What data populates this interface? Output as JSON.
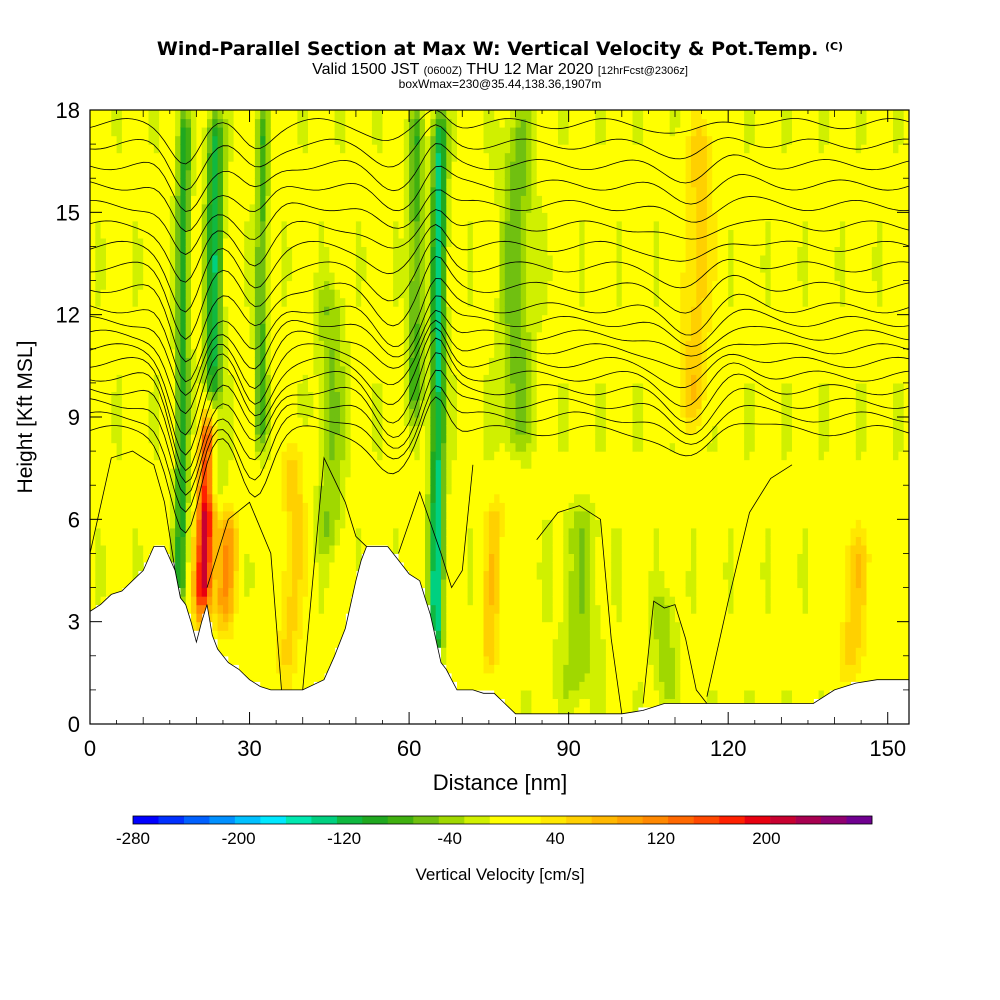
{
  "title": {
    "main": "Wind-Parallel Section at Max W: Vertical Velocity & Pot.Temp.",
    "copyright_mark": "(C)",
    "valid_prefix": "Valid 1500 JST",
    "utc": "(0600Z)",
    "date": "THU 12 Mar 2020",
    "forecast": "[12hrFcst@2306z]",
    "box_info": "boxWmax=230@35.44,138.36,1907m"
  },
  "chart_data": {
    "type": "heatmap",
    "xlabel": "Distance [nm]",
    "ylabel": "Height [Kft MSL]",
    "xlim": [
      0,
      154
    ],
    "ylim": [
      0,
      18
    ],
    "x_ticks": [
      0,
      30,
      60,
      90,
      120,
      150
    ],
    "y_ticks": [
      0,
      3,
      6,
      9,
      12,
      15,
      18
    ],
    "colorbar": {
      "label": "Vertical Velocity [cm/s]",
      "range": [
        -280,
        280
      ],
      "step": 20,
      "tick_labels": [
        -280,
        -200,
        -120,
        -40,
        40,
        120,
        200
      ],
      "colors": [
        "#0000ff",
        "#0030ff",
        "#0060ff",
        "#0090ff",
        "#00c0ff",
        "#00e8ff",
        "#00e8b0",
        "#00d080",
        "#10b840",
        "#20a820",
        "#40b010",
        "#70c010",
        "#a0d800",
        "#d0f000",
        "#ffff00",
        "#ffff00",
        "#ffe800",
        "#ffd000",
        "#ffb800",
        "#ffa000",
        "#ff8800",
        "#ff6800",
        "#ff4800",
        "#ff2000",
        "#e80010",
        "#c80030",
        "#a80050",
        "#900070",
        "#700090"
      ]
    },
    "terrain_profile": {
      "x": [
        0,
        2,
        4,
        6,
        8,
        10,
        12,
        14,
        16,
        17,
        18,
        19,
        20,
        21,
        22,
        23,
        24,
        26,
        28,
        30,
        32,
        34,
        36,
        40,
        44,
        46,
        48,
        50,
        51,
        52,
        54,
        56,
        58,
        60,
        62,
        63,
        64,
        65,
        66,
        67,
        68,
        69,
        70,
        72,
        74,
        76,
        78,
        80,
        84,
        88,
        92,
        96,
        100,
        104,
        108,
        110,
        112,
        116,
        120,
        124,
        128,
        132,
        136,
        140,
        144,
        148,
        150,
        154
      ],
      "h": [
        3.3,
        3.5,
        3.8,
        3.9,
        4.2,
        4.5,
        5.2,
        5.2,
        4.5,
        3.7,
        3.5,
        3.0,
        2.4,
        3.0,
        3.5,
        2.6,
        2.2,
        1.8,
        1.6,
        1.3,
        1.1,
        1.0,
        1.0,
        1.0,
        1.3,
        2.0,
        2.8,
        4.2,
        4.8,
        5.2,
        5.2,
        5.2,
        4.8,
        4.4,
        4.2,
        3.7,
        3.2,
        2.5,
        1.8,
        1.6,
        1.3,
        1.0,
        1.0,
        1.0,
        0.9,
        0.9,
        0.6,
        0.3,
        0.3,
        0.3,
        0.3,
        0.3,
        0.3,
        0.4,
        0.6,
        0.6,
        0.6,
        0.6,
        0.6,
        0.6,
        0.6,
        0.6,
        0.6,
        1.0,
        1.2,
        1.3,
        1.3,
        1.3
      ]
    },
    "updraft_cores": [
      {
        "x": 21,
        "y_bottom": 3.0,
        "y_top": 9.5,
        "w": 230,
        "halfwidth": 1.6
      },
      {
        "x": 25,
        "y_bottom": 2.5,
        "y_top": 6.5,
        "w": 100,
        "halfwidth": 2.2
      },
      {
        "x": 37,
        "y_bottom": 1.0,
        "y_top": 8.5,
        "w": 60,
        "halfwidth": 2.5
      },
      {
        "x": 75,
        "y_bottom": 1.0,
        "y_top": 7.0,
        "w": 60,
        "halfwidth": 2.0
      },
      {
        "x": 113,
        "y_bottom": 8.5,
        "y_top": 18.0,
        "w": 60,
        "halfwidth": 3.0
      },
      {
        "x": 143,
        "y_bottom": 1.0,
        "y_top": 6.0,
        "w": 60,
        "halfwidth": 3.0
      }
    ],
    "downdraft_cores": [
      {
        "x": 17,
        "y_bottom": 3.5,
        "y_top": 18.0,
        "w": -100,
        "halfwidth": 1.3
      },
      {
        "x": 23,
        "y_bottom": 6.5,
        "y_top": 18.0,
        "w": -120,
        "halfwidth": 1.6
      },
      {
        "x": 32,
        "y_bottom": 8.0,
        "y_top": 18.0,
        "w": -80,
        "halfwidth": 1.2
      },
      {
        "x": 45,
        "y_bottom": 5.0,
        "y_top": 13.0,
        "w": -50,
        "halfwidth": 2.5
      },
      {
        "x": 65,
        "y_bottom": 2.0,
        "y_top": 18.0,
        "w": -140,
        "halfwidth": 1.4
      },
      {
        "x": 61,
        "y_bottom": 9.0,
        "y_top": 18.0,
        "w": -80,
        "halfwidth": 1.4
      },
      {
        "x": 80,
        "y_bottom": 8.0,
        "y_top": 18.0,
        "w": -60,
        "halfwidth": 3.0
      },
      {
        "x": 92,
        "y_bottom": 0.5,
        "y_top": 6.5,
        "w": -40,
        "halfwidth": 4.0
      },
      {
        "x": 108,
        "y_bottom": 0.5,
        "y_top": 4.0,
        "w": -40,
        "halfwidth": 2.5
      }
    ],
    "theta_contours": {
      "base_levels": [
        8.6,
        9.0,
        9.4,
        9.8,
        10.2,
        10.6,
        11.0,
        11.4,
        11.8,
        12.2,
        12.8,
        13.4,
        14.0,
        14.6,
        15.2,
        15.8,
        16.4,
        17.0,
        17.6
      ],
      "perturbations": [
        {
          "x": 18,
          "amp": 3.0,
          "width": 4
        },
        {
          "x": 31,
          "amp": 1.8,
          "width": 4
        },
        {
          "x": 57,
          "amp": 1.4,
          "width": 5
        },
        {
          "x": 65,
          "amp": -1.2,
          "width": 3
        },
        {
          "x": 113,
          "amp": 1.0,
          "width": 6
        },
        {
          "x": 120,
          "amp": -0.5,
          "width": 6
        }
      ],
      "lower_contours": [
        {
          "x": [
            0,
            4,
            8,
            12,
            14,
            16,
            17
          ],
          "y": [
            5.0,
            7.8,
            8.0,
            7.6,
            6.5,
            4.5,
            3.7
          ]
        },
        {
          "x": [
            22,
            26,
            30,
            34,
            36
          ],
          "y": [
            4.0,
            6.0,
            6.5,
            5.0,
            1.0
          ]
        },
        {
          "x": [
            40,
            44,
            48,
            50,
            52
          ],
          "y": [
            1.0,
            7.8,
            6.5,
            5.5,
            5.2
          ]
        },
        {
          "x": [
            58,
            62,
            66,
            68,
            70,
            72
          ],
          "y": [
            5.0,
            6.8,
            5.0,
            4.0,
            4.5,
            7.6
          ]
        },
        {
          "x": [
            84,
            88,
            92,
            96,
            98,
            100
          ],
          "y": [
            5.4,
            6.2,
            6.4,
            6.0,
            2.5,
            0.3
          ]
        },
        {
          "x": [
            104,
            106,
            108,
            110,
            112,
            114,
            116
          ],
          "y": [
            0.6,
            3.6,
            3.4,
            3.5,
            2.5,
            1.0,
            0.6
          ]
        },
        {
          "x": [
            116,
            120,
            124,
            128,
            132
          ],
          "y": [
            0.8,
            3.6,
            6.2,
            7.2,
            7.6
          ]
        }
      ]
    }
  }
}
